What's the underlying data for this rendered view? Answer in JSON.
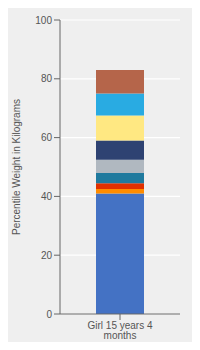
{
  "chart_data": {
    "type": "bar",
    "stacked": true,
    "categories": [
      "Girl 15 years 4 months"
    ],
    "ylabel": "Percentile Weight in Kilograms",
    "series": [
      {
        "color": "#4472C4",
        "values": [
          41.0
        ]
      },
      {
        "color": "#FF8C00",
        "values": [
          1.5
        ]
      },
      {
        "color": "#E03000",
        "values": [
          2.0
        ]
      },
      {
        "color": "#1F7A9E",
        "values": [
          3.5
        ]
      },
      {
        "color": "#B0B8C0",
        "values": [
          4.5
        ]
      },
      {
        "color": "#2E4272",
        "values": [
          6.5
        ]
      },
      {
        "color": "#FFE882",
        "values": [
          8.5
        ]
      },
      {
        "color": "#29ABE2",
        "values": [
          7.5
        ]
      },
      {
        "color": "#B5654A",
        "values": [
          8.0
        ]
      }
    ],
    "ylim": [
      0,
      100
    ],
    "yticks": [
      0,
      20,
      40,
      60,
      80,
      100
    ],
    "grid": true
  }
}
